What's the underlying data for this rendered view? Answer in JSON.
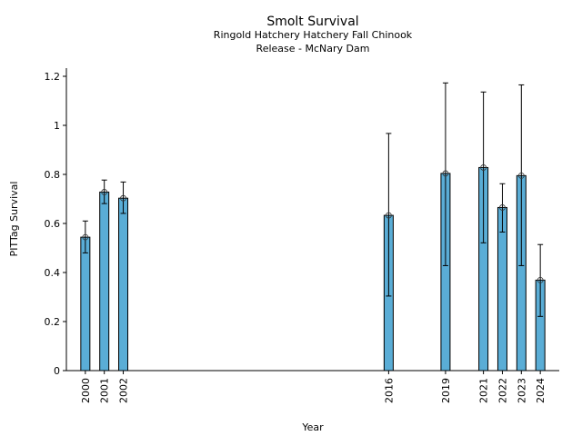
{
  "chart_data": {
    "type": "bar",
    "title": "Smolt Survival",
    "subtitle_lines": [
      "Ringold Hatchery Hatchery Fall Chinook",
      "Release - McNary Dam"
    ],
    "xlabel": "Year",
    "ylabel": "PITTag Survival",
    "xlim": [
      1999,
      2025
    ],
    "ylim": [
      0,
      1.2
    ],
    "yticks": [
      0,
      0.2,
      0.4,
      0.6,
      0.8,
      1,
      1.2
    ],
    "ytick_labels": [
      "0",
      "0.2",
      "0.4",
      "0.6",
      "0.8",
      "1",
      "1.2"
    ],
    "categories": [
      "2000",
      "2001",
      "2002",
      "2016",
      "2019",
      "2021",
      "2022",
      "2023",
      "2024"
    ],
    "x": [
      2000,
      2001,
      2002,
      2016,
      2019,
      2021,
      2022,
      2023,
      2024
    ],
    "values": [
      0.544,
      0.728,
      0.703,
      0.633,
      0.804,
      0.828,
      0.665,
      0.795,
      0.369
    ],
    "error_lower": [
      0.48,
      0.681,
      0.641,
      0.304,
      0.428,
      0.521,
      0.565,
      0.428,
      0.221
    ],
    "error_upper": [
      0.61,
      0.777,
      0.769,
      0.967,
      1.173,
      1.136,
      0.762,
      1.165,
      0.514
    ],
    "grid": false,
    "bar_color": "#5aadd6"
  }
}
